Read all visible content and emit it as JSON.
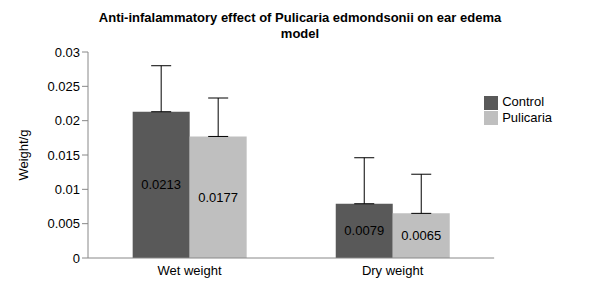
{
  "chart_data": {
    "type": "bar",
    "title": "Anti-infalammatory effect of Pulicaria edmondsonii on ear edema model",
    "y_label": "Weight/g",
    "categories": [
      "Wet weight",
      "Dry weight"
    ],
    "series": [
      {
        "name": "Control",
        "color": "#595959",
        "values": [
          0.0213,
          0.0079
        ],
        "errors": [
          0.0067,
          0.0067
        ]
      },
      {
        "name": "Pulicaria",
        "color": "#bfbfbf",
        "values": [
          0.0177,
          0.0065
        ],
        "errors": [
          0.0056,
          0.0057
        ]
      }
    ],
    "ylim": [
      0,
      0.03
    ],
    "yticks": [
      0,
      0.005,
      0.01,
      0.015,
      0.02,
      0.025,
      0.03
    ],
    "grid": false,
    "legend": "right",
    "data_labels": true
  }
}
